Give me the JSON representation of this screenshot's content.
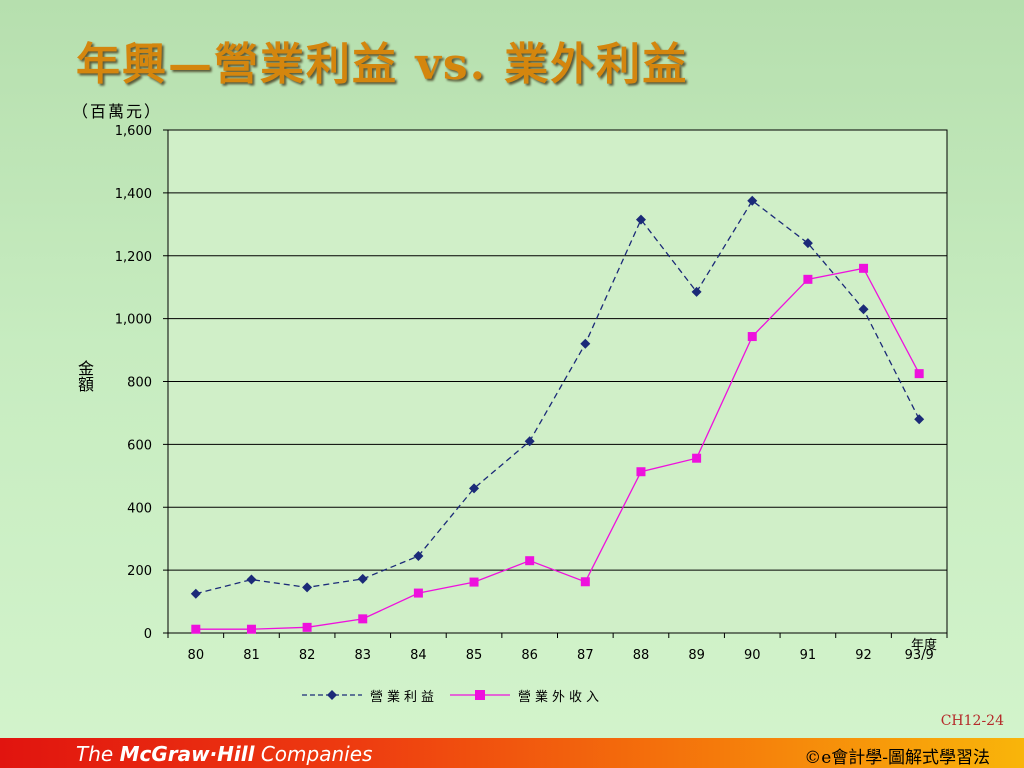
{
  "slide": {
    "title": "年興—營業利益 vs. 業外利益",
    "unit_label": "（百萬元）",
    "slide_code": "CH12-24",
    "publisher": {
      "prefix": "The ",
      "brand": "McGraw·Hill",
      "suffix": " Companies"
    },
    "book_title": "©e會計學-圖解式學習法"
  },
  "chart_data": {
    "type": "line",
    "title": "",
    "xlabel": "年度",
    "ylabel": "金額",
    "categories": [
      "80",
      "81",
      "82",
      "83",
      "84",
      "85",
      "86",
      "87",
      "88",
      "89",
      "90",
      "91",
      "92",
      "93/9"
    ],
    "ylim": [
      0,
      1600
    ],
    "yticks": [
      0,
      200,
      400,
      600,
      800,
      1000,
      1200,
      1400,
      1600
    ],
    "ytick_labels": [
      "0",
      "200",
      "400",
      "600",
      "800",
      "1,000",
      "1,200",
      "1,400",
      "1,600"
    ],
    "grid": true,
    "legend_position": "bottom",
    "series": [
      {
        "name": "營業利益",
        "color": "#1b2a78",
        "marker": "diamond",
        "line_style": "dashed",
        "values": [
          125,
          170,
          145,
          172,
          245,
          460,
          610,
          920,
          1315,
          1085,
          1375,
          1240,
          1030,
          680
        ]
      },
      {
        "name": "營業外收入",
        "color": "#ee11dd",
        "marker": "square",
        "line_style": "solid",
        "values": [
          12,
          12,
          18,
          45,
          127,
          162,
          230,
          163,
          513,
          556,
          943,
          1125,
          1160,
          825
        ]
      }
    ]
  }
}
